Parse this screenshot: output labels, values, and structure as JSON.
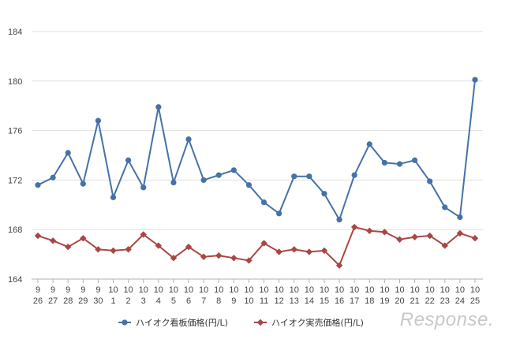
{
  "chart_data": {
    "type": "line",
    "title": "",
    "xlabel": "",
    "ylabel": "",
    "ylim": [
      164,
      184
    ],
    "yticks": [
      164,
      168,
      172,
      176,
      180,
      184
    ],
    "categories": [
      {
        "month": "9",
        "day": "26"
      },
      {
        "month": "9",
        "day": "27"
      },
      {
        "month": "9",
        "day": "28"
      },
      {
        "month": "9",
        "day": "29"
      },
      {
        "month": "9",
        "day": "30"
      },
      {
        "month": "10",
        "day": "1"
      },
      {
        "month": "10",
        "day": "2"
      },
      {
        "month": "10",
        "day": "3"
      },
      {
        "month": "10",
        "day": "4"
      },
      {
        "month": "10",
        "day": "5"
      },
      {
        "month": "10",
        "day": "6"
      },
      {
        "month": "10",
        "day": "7"
      },
      {
        "month": "10",
        "day": "8"
      },
      {
        "month": "10",
        "day": "9"
      },
      {
        "month": "10",
        "day": "10"
      },
      {
        "month": "10",
        "day": "11"
      },
      {
        "month": "10",
        "day": "12"
      },
      {
        "month": "10",
        "day": "13"
      },
      {
        "month": "10",
        "day": "14"
      },
      {
        "month": "10",
        "day": "15"
      },
      {
        "month": "10",
        "day": "16"
      },
      {
        "month": "10",
        "day": "17"
      },
      {
        "month": "10",
        "day": "18"
      },
      {
        "month": "10",
        "day": "19"
      },
      {
        "month": "10",
        "day": "20"
      },
      {
        "month": "10",
        "day": "21"
      },
      {
        "month": "10",
        "day": "22"
      },
      {
        "month": "10",
        "day": "23"
      },
      {
        "month": "10",
        "day": "24"
      },
      {
        "month": "10",
        "day": "25"
      }
    ],
    "series": [
      {
        "name": "ハイオク看板価格(円/L)",
        "color": "#4572a7",
        "marker": "circle",
        "values": [
          171.6,
          172.2,
          174.2,
          171.7,
          176.8,
          170.6,
          173.6,
          171.4,
          177.9,
          171.8,
          175.3,
          172.0,
          172.4,
          172.8,
          171.6,
          170.2,
          169.3,
          172.3,
          172.3,
          170.9,
          168.8,
          172.4,
          174.9,
          173.4,
          173.3,
          173.6,
          171.9,
          169.8,
          169.0,
          180.1
        ]
      },
      {
        "name": "ハイオク実売価格(円/L)",
        "color": "#aa4643",
        "marker": "diamond",
        "values": [
          167.5,
          167.1,
          166.6,
          167.3,
          166.4,
          166.3,
          166.4,
          167.6,
          166.7,
          165.7,
          166.6,
          165.8,
          165.9,
          165.7,
          165.5,
          166.9,
          166.2,
          166.4,
          166.2,
          166.3,
          165.1,
          168.2,
          167.9,
          167.8,
          167.2,
          167.4,
          167.5,
          166.7,
          167.7,
          167.3
        ]
      }
    ],
    "legend_position": "bottom",
    "gridlines": true
  },
  "watermark": "Response."
}
